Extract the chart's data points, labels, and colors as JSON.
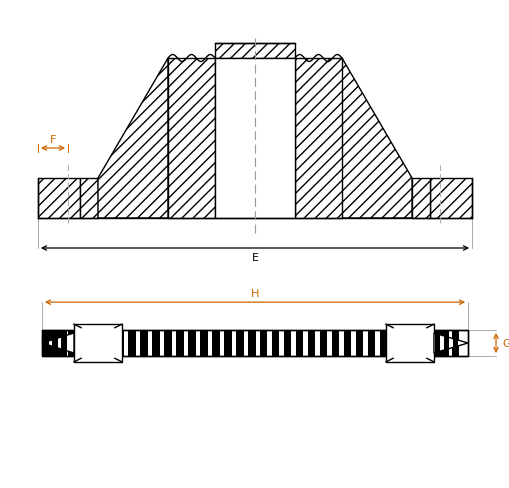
{
  "bg_color": "#ffffff",
  "line_color": "#000000",
  "hatch_color": "#555555",
  "dim_color_F": "#cc6600",
  "dim_color_H": "#cc6600",
  "dim_color_E": "#000000",
  "dim_color_G": "#cc6600",
  "label_F": "F",
  "label_E": "E",
  "label_H": "H",
  "label_G": "G",
  "figsize": [
    5.09,
    4.89
  ],
  "dpi": 100
}
